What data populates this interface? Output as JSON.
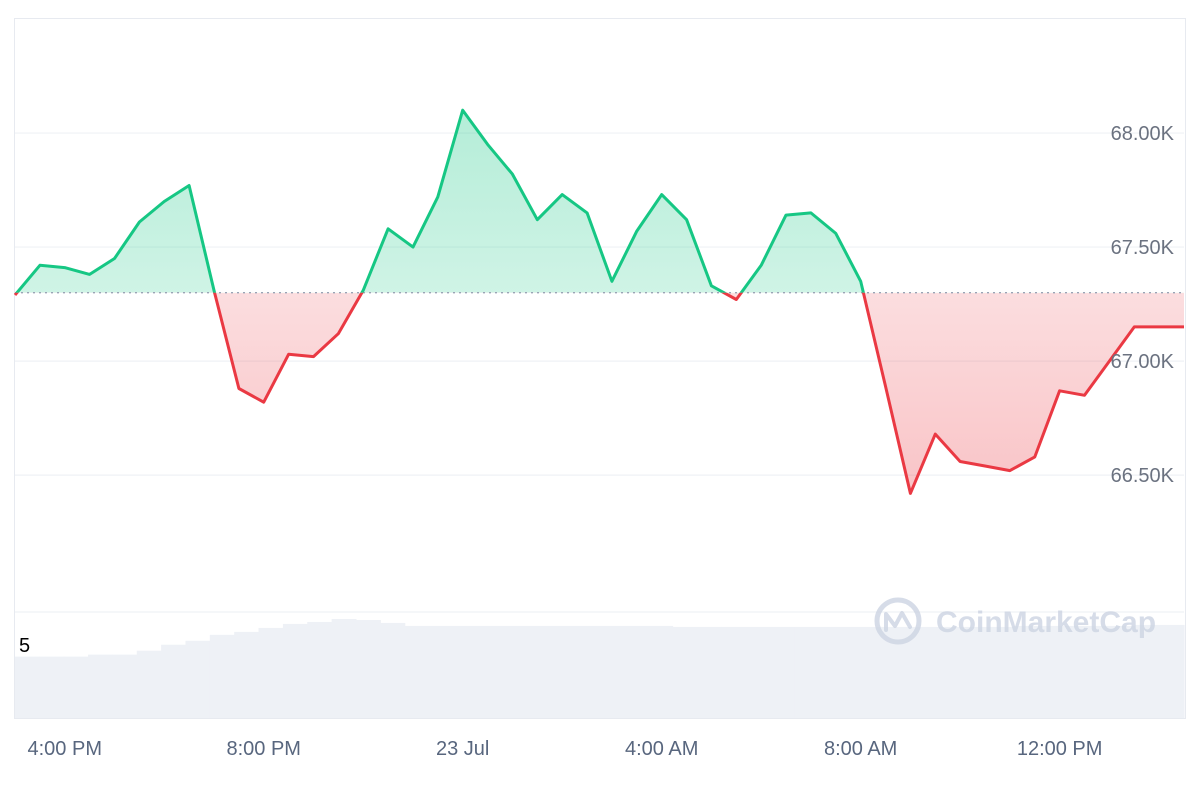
{
  "chart_data": {
    "type": "area",
    "x": [
      "15:00",
      "15:30",
      "16:00",
      "16:30",
      "17:00",
      "17:30",
      "18:00",
      "18:30",
      "19:00",
      "19:30",
      "20:00",
      "20:30",
      "21:00",
      "21:30",
      "22:00",
      "22:30",
      "23:00",
      "23:30",
      "00:00",
      "00:30",
      "01:00",
      "01:30",
      "02:00",
      "02:30",
      "03:00",
      "03:30",
      "04:00",
      "04:30",
      "05:00",
      "05:30",
      "06:00",
      "06:30",
      "07:00",
      "07:30",
      "08:00",
      "08:30",
      "09:00",
      "09:30",
      "10:00",
      "10:30",
      "11:00",
      "11:30",
      "12:00",
      "12:30",
      "13:00",
      "13:30",
      "14:00",
      "14:30"
    ],
    "series": [
      {
        "values": [
          67290,
          67420,
          67410,
          67380,
          67450,
          67610,
          67700,
          67770,
          67310,
          66880,
          66820,
          67030,
          67020,
          67120,
          67310,
          67580,
          67500,
          67720,
          68100,
          67950,
          67820,
          67620,
          67730,
          67650,
          67350,
          67570,
          67730,
          67620,
          67330,
          67270,
          67420,
          67640,
          67650,
          67560,
          67350,
          66890,
          66420,
          66680,
          66560,
          66540,
          66520,
          66580,
          66870,
          66850,
          67000,
          67150,
          67150,
          67150
        ]
      }
    ],
    "baseline": 67300,
    "ylim": [
      65900,
      68500
    ],
    "yticks": [
      "68.00K",
      "67.50K",
      "67.00K",
      "66.50K"
    ],
    "ytick_values": [
      68000,
      67500,
      67000,
      66500
    ],
    "xticks": [
      "4:00 PM",
      "8:00 PM",
      "23 Jul",
      "4:00 AM",
      "8:00 AM",
      "12:00 PM"
    ],
    "xtick_positions": [
      "16:00",
      "20:00",
      "00:00",
      "04:00",
      "08:00",
      "12:00"
    ],
    "volume": {
      "label": "5",
      "values": [
        0.62,
        0.62,
        0.62,
        0.64,
        0.64,
        0.68,
        0.74,
        0.78,
        0.84,
        0.87,
        0.91,
        0.95,
        0.97,
        1.0,
        0.99,
        0.96,
        0.93,
        0.93,
        0.93,
        0.93,
        0.93,
        0.93,
        0.93,
        0.93,
        0.93,
        0.93,
        0.93,
        0.92,
        0.92,
        0.92,
        0.92,
        0.92,
        0.92,
        0.92,
        0.92,
        0.92,
        0.92,
        0.92,
        0.92,
        0.92,
        0.92,
        0.93,
        0.93,
        0.93,
        0.93,
        0.93,
        0.94,
        0.94
      ]
    },
    "grid": true,
    "colors": {
      "up": "#16c784",
      "down": "#ea3943",
      "grid": "#eff2f5",
      "volume": "#eef1f6",
      "baseline": "#9aa3b5"
    }
  },
  "watermark": {
    "text": "CoinMarketCap",
    "icon": "coinmarketcap-logo-icon"
  }
}
